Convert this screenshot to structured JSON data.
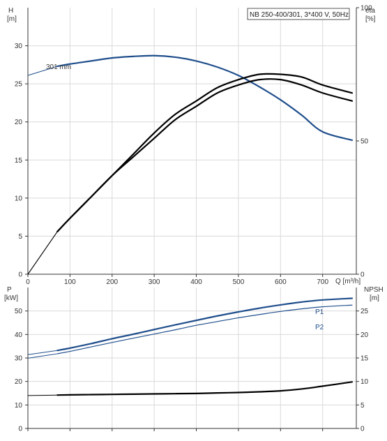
{
  "chart_data": [
    {
      "type": "line",
      "panel": "head-efficiency",
      "title": "NB 250-400/301, 3*400 V, 50Hz",
      "x_axis": {
        "label": "Q [m³/h]",
        "range": [
          0,
          780
        ],
        "ticks": [
          "0",
          "100",
          "200",
          "300",
          "400",
          "500",
          "600",
          "700"
        ]
      },
      "y_axis_left": {
        "label_line1": "H",
        "label_line2": "[m]",
        "range": [
          0,
          35
        ],
        "ticks": [
          "0",
          "5",
          "10",
          "15",
          "20",
          "25",
          "30"
        ]
      },
      "y_axis_right": {
        "label_line1": "eta",
        "label_line2": "[%]",
        "range": [
          0,
          100
        ],
        "ticks": [
          "0",
          "50",
          "100"
        ]
      },
      "grid": true,
      "annotations": [
        {
          "text": "301 mm"
        }
      ],
      "series": [
        {
          "axis": "left",
          "color": "#1f4e8c",
          "x": [
            0,
            70,
            100,
            150,
            200,
            250,
            300,
            350,
            400,
            450,
            500,
            550,
            600,
            650,
            700,
            770
          ],
          "y": [
            26.1,
            27.3,
            27.6,
            28.0,
            28.4,
            28.6,
            28.7,
            28.5,
            28.0,
            27.2,
            26.1,
            24.6,
            22.9,
            20.9,
            18.7,
            17.6
          ]
        },
        {
          "axis": "right",
          "color": "#000000",
          "x": [
            0,
            70,
            100,
            150,
            200,
            250,
            300,
            350,
            400,
            450,
            500,
            550,
            600,
            650,
            700,
            770
          ],
          "y": [
            0,
            16,
            21,
            29,
            37,
            44,
            51,
            58,
            63,
            68,
            71,
            73,
            73,
            71,
            68,
            65
          ]
        },
        {
          "axis": "right",
          "color": "#000000",
          "x": [
            0,
            70,
            100,
            150,
            200,
            250,
            300,
            350,
            400,
            450,
            500,
            550,
            600,
            650,
            700,
            770
          ],
          "y": [
            0,
            16,
            21,
            29,
            37,
            45,
            53,
            60,
            65,
            70,
            73,
            75,
            75,
            74,
            71,
            68
          ]
        }
      ]
    },
    {
      "type": "line",
      "panel": "power-npsh",
      "x_axis": {
        "range": [
          0,
          780
        ]
      },
      "y_axis_left": {
        "label_line1": "P",
        "label_line2": "[kW]",
        "range": [
          0,
          60
        ],
        "ticks": [
          "0",
          "10",
          "20",
          "30",
          "40",
          "50"
        ]
      },
      "y_axis_right": {
        "label_line1": "NPSH",
        "label_line2": "[m]",
        "range": [
          0,
          30
        ],
        "ticks": [
          "0",
          "5",
          "10",
          "15",
          "20",
          "25"
        ]
      },
      "grid": true,
      "series": [
        {
          "name": "P1",
          "axis": "left",
          "color": "#1f4e8c",
          "x": [
            0,
            70,
            100,
            150,
            200,
            250,
            300,
            350,
            400,
            450,
            500,
            550,
            600,
            650,
            700,
            770
          ],
          "y": [
            31.4,
            33.2,
            34.2,
            36.1,
            38.2,
            40.1,
            42.1,
            44.1,
            46.0,
            47.9,
            49.6,
            51.2,
            52.6,
            53.8,
            54.7,
            55.4
          ]
        },
        {
          "name": "P2",
          "axis": "left",
          "color": "#1f4e8c",
          "x": [
            0,
            70,
            100,
            150,
            200,
            250,
            300,
            350,
            400,
            450,
            500,
            550,
            600,
            650,
            700,
            770
          ],
          "y": [
            29.9,
            31.8,
            32.8,
            34.7,
            36.6,
            38.4,
            40.2,
            42.0,
            43.9,
            45.5,
            47.1,
            48.5,
            49.8,
            50.9,
            51.8,
            52.5
          ]
        },
        {
          "axis": "right",
          "color": "#000000",
          "x": [
            0,
            70,
            100,
            150,
            200,
            250,
            300,
            350,
            400,
            450,
            500,
            550,
            600,
            650,
            700,
            770
          ],
          "y": [
            7.0,
            7.1,
            7.15,
            7.2,
            7.25,
            7.3,
            7.35,
            7.4,
            7.45,
            7.55,
            7.65,
            7.8,
            8.0,
            8.4,
            9.0,
            9.9
          ]
        }
      ]
    }
  ]
}
